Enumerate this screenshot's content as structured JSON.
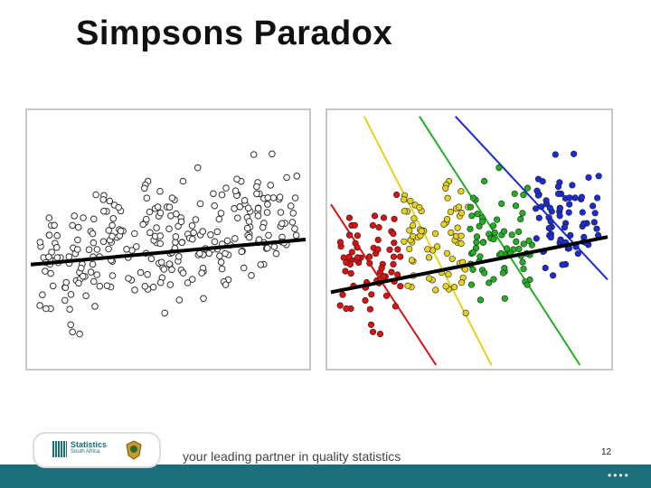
{
  "slide": {
    "title": "Simpsons Paradox",
    "page_number": "12",
    "tagline": "your leading partner in quality statistics",
    "logo_line1": "Statistics",
    "logo_line2": "South Africa",
    "nav_dots": "••••"
  },
  "colors": {
    "groups": [
      "#dd1111",
      "#e6d21a",
      "#22b022",
      "#1c2bd6"
    ],
    "trend": "#000000",
    "brand": "#1b6f7a"
  },
  "chart_data": [
    {
      "type": "scatter",
      "title": "",
      "xlabel": "",
      "ylabel": "",
      "xlim": [
        0,
        10
      ],
      "ylim": [
        0,
        10
      ],
      "grid": false,
      "legend": "none",
      "groups": [
        {
          "xmin": 0.3,
          "xmax": 2.6,
          "ymin": 0.8,
          "ymax": 7.2,
          "n": 70,
          "color": "#dddddd"
        },
        {
          "xmin": 2.6,
          "xmax": 5.0,
          "ymin": 1.3,
          "ymax": 8.8,
          "n": 70,
          "color": "#dddddd"
        },
        {
          "xmin": 5.0,
          "xmax": 7.4,
          "ymin": 1.9,
          "ymax": 8.3,
          "n": 70,
          "color": "#dddddd"
        },
        {
          "xmin": 7.4,
          "xmax": 9.7,
          "ymin": 2.5,
          "ymax": 9.1,
          "n": 70,
          "color": "#dddddd"
        }
      ],
      "trend_line": {
        "x": [
          0,
          10
        ],
        "y": [
          4.0,
          5.0
        ]
      }
    },
    {
      "type": "scatter",
      "title": "",
      "xlabel": "",
      "ylabel": "",
      "xlim": [
        0,
        10
      ],
      "ylim": [
        0,
        10
      ],
      "grid": false,
      "legend": "none",
      "groups": [
        {
          "xmin": 0.3,
          "xmax": 2.6,
          "ymin": 0.8,
          "ymax": 7.2,
          "n": 70,
          "color": "#dd1111"
        },
        {
          "xmin": 2.6,
          "xmax": 5.0,
          "ymin": 1.3,
          "ymax": 8.8,
          "n": 70,
          "color": "#e6d21a"
        },
        {
          "xmin": 5.0,
          "xmax": 7.4,
          "ymin": 1.9,
          "ymax": 8.3,
          "n": 70,
          "color": "#22b022"
        },
        {
          "xmin": 7.4,
          "xmax": 9.7,
          "ymin": 2.5,
          "ymax": 9.1,
          "n": 70,
          "color": "#1c2bd6"
        }
      ],
      "trend_line": {
        "x": [
          0,
          10
        ],
        "y": [
          2.9,
          5.1
        ]
      },
      "group_lines": [
        {
          "color": "#dd1111",
          "x": [
            0.0,
            3.8
          ],
          "y": [
            6.4,
            0.0
          ]
        },
        {
          "color": "#e6d21a",
          "x": [
            1.2,
            5.8
          ],
          "y": [
            9.9,
            0.0
          ]
        },
        {
          "color": "#22b022",
          "x": [
            3.2,
            9.0
          ],
          "y": [
            9.9,
            0.0
          ]
        },
        {
          "color": "#1c2bd6",
          "x": [
            4.5,
            10.0
          ],
          "y": [
            9.9,
            3.4
          ]
        }
      ]
    }
  ]
}
